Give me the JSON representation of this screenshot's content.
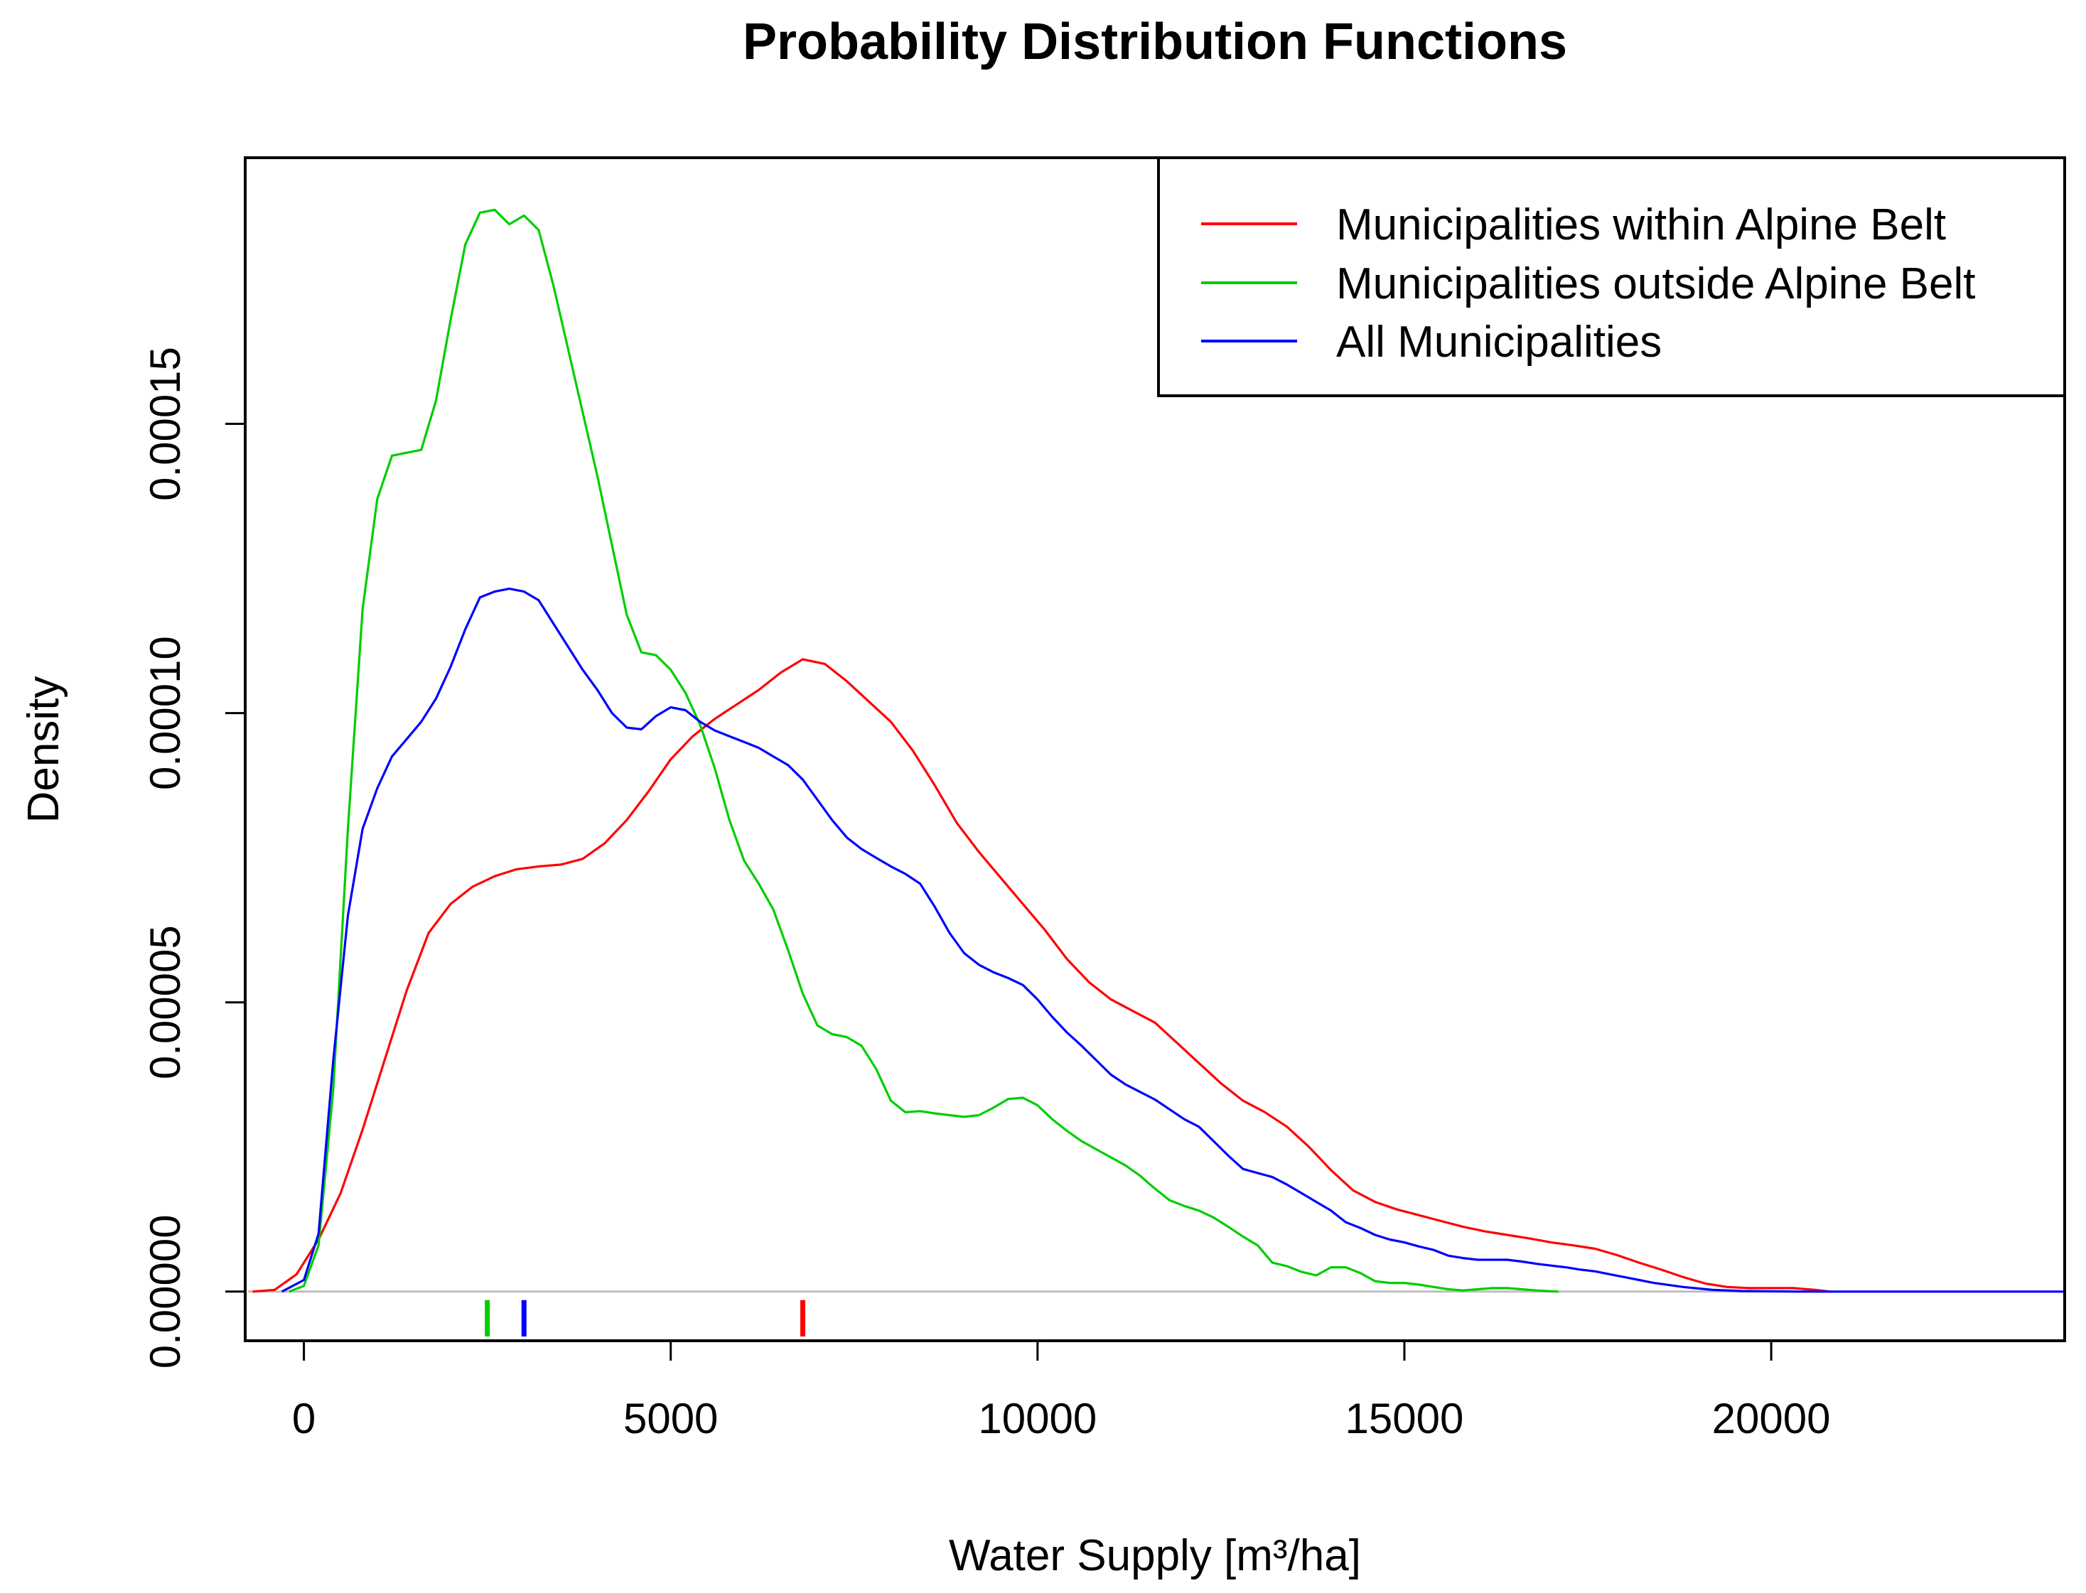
{
  "chart_data": {
    "type": "line",
    "title": "Probability Distribution Functions",
    "xlabel": "Water Supply [m³/ha]",
    "ylabel": "Density",
    "xlim": [
      -800,
      24000
    ],
    "ylim": [
      -8.5e-06,
      0.000196
    ],
    "x_ticks": [
      0,
      5000,
      10000,
      15000,
      20000
    ],
    "x_tick_labels": [
      "0",
      "5000",
      "10000",
      "15000",
      "20000"
    ],
    "y_ticks": [
      0,
      5e-05,
      0.0001,
      0.00015
    ],
    "y_tick_labels": [
      "0.00000",
      "0.00005",
      "0.00010",
      "0.00015"
    ],
    "legend_position": "top-right",
    "baseline": {
      "y": 0,
      "color": "#bebebe"
    },
    "series": [
      {
        "name": "Municipalities within Alpine Belt",
        "color": "#ff0000",
        "median": 6800,
        "points": [
          [
            -700,
            0
          ],
          [
            -400,
            3e-07
          ],
          [
            -100,
            3e-06
          ],
          [
            200,
            9e-06
          ],
          [
            500,
            1.7e-05
          ],
          [
            800,
            2.8e-05
          ],
          [
            1100,
            4e-05
          ],
          [
            1400,
            5.2e-05
          ],
          [
            1700,
            6.2e-05
          ],
          [
            2000,
            6.7e-05
          ],
          [
            2300,
            7e-05
          ],
          [
            2600,
            7.18e-05
          ],
          [
            2900,
            7.3e-05
          ],
          [
            3200,
            7.35e-05
          ],
          [
            3500,
            7.38e-05
          ],
          [
            3800,
            7.48e-05
          ],
          [
            4100,
            7.75e-05
          ],
          [
            4400,
            8.15e-05
          ],
          [
            4700,
            8.65e-05
          ],
          [
            5000,
            9.2e-05
          ],
          [
            5300,
            9.6e-05
          ],
          [
            5600,
            9.9e-05
          ],
          [
            5900,
            0.0001015
          ],
          [
            6200,
            0.000104
          ],
          [
            6500,
            0.000107
          ],
          [
            6800,
            0.0001093
          ],
          [
            7100,
            0.0001085
          ],
          [
            7400,
            0.0001055
          ],
          [
            7700,
            0.000102
          ],
          [
            8000,
            9.85e-05
          ],
          [
            8300,
            9.35e-05
          ],
          [
            8600,
            8.75e-05
          ],
          [
            8900,
            8.1e-05
          ],
          [
            9200,
            7.6e-05
          ],
          [
            9500,
            7.15e-05
          ],
          [
            9800,
            6.7e-05
          ],
          [
            10100,
            6.25e-05
          ],
          [
            10400,
            5.75e-05
          ],
          [
            10700,
            5.35e-05
          ],
          [
            11000,
            5.05e-05
          ],
          [
            11300,
            4.85e-05
          ],
          [
            11600,
            4.65e-05
          ],
          [
            11900,
            4.3e-05
          ],
          [
            12200,
            3.95e-05
          ],
          [
            12500,
            3.6e-05
          ],
          [
            12800,
            3.3e-05
          ],
          [
            13100,
            3.1e-05
          ],
          [
            13400,
            2.85e-05
          ],
          [
            13700,
            2.5e-05
          ],
          [
            14000,
            2.1e-05
          ],
          [
            14300,
            1.75e-05
          ],
          [
            14600,
            1.55e-05
          ],
          [
            14900,
            1.42e-05
          ],
          [
            15200,
            1.32e-05
          ],
          [
            15500,
            1.22e-05
          ],
          [
            15800,
            1.12e-05
          ],
          [
            16100,
            1.04e-05
          ],
          [
            16400,
            9.8e-06
          ],
          [
            16700,
            9.2e-06
          ],
          [
            17000,
            8.5e-06
          ],
          [
            17300,
            8e-06
          ],
          [
            17600,
            7.4e-06
          ],
          [
            17900,
            6.3e-06
          ],
          [
            18200,
            5e-06
          ],
          [
            18500,
            3.8e-06
          ],
          [
            18800,
            2.5e-06
          ],
          [
            19100,
            1.4e-06
          ],
          [
            19400,
            8e-07
          ],
          [
            19700,
            6e-07
          ],
          [
            20000,
            6e-07
          ],
          [
            20300,
            6e-07
          ],
          [
            20600,
            3e-07
          ],
          [
            20800,
            0
          ]
        ]
      },
      {
        "name": "Municipalities outside Alpine Belt",
        "color": "#00cd00",
        "median": 2500,
        "points": [
          [
            -200,
            0
          ],
          [
            0,
            1e-06
          ],
          [
            200,
            8e-06
          ],
          [
            400,
            3.5e-05
          ],
          [
            600,
            8e-05
          ],
          [
            800,
            0.000118
          ],
          [
            1000,
            0.000137
          ],
          [
            1200,
            0.0001445
          ],
          [
            1400,
            0.000145
          ],
          [
            1600,
            0.0001455
          ],
          [
            1800,
            0.000154
          ],
          [
            2000,
            0.000168
          ],
          [
            2200,
            0.000181
          ],
          [
            2400,
            0.0001865
          ],
          [
            2600,
            0.000187
          ],
          [
            2800,
            0.0001845
          ],
          [
            3000,
            0.000186
          ],
          [
            3200,
            0.0001835
          ],
          [
            3400,
            0.000174
          ],
          [
            3600,
            0.000163
          ],
          [
            3800,
            0.000152
          ],
          [
            4000,
            0.000141
          ],
          [
            4200,
            0.000129
          ],
          [
            4400,
            0.000117
          ],
          [
            4600,
            0.0001105
          ],
          [
            4800,
            0.00011
          ],
          [
            5000,
            0.0001075
          ],
          [
            5200,
            0.0001035
          ],
          [
            5400,
            9.8e-05
          ],
          [
            5600,
            9.05e-05
          ],
          [
            5800,
            8.15e-05
          ],
          [
            6000,
            7.45e-05
          ],
          [
            6200,
            7.05e-05
          ],
          [
            6400,
            6.6e-05
          ],
          [
            6600,
            5.9e-05
          ],
          [
            6800,
            5.15e-05
          ],
          [
            7000,
            4.6e-05
          ],
          [
            7200,
            4.45e-05
          ],
          [
            7400,
            4.4e-05
          ],
          [
            7600,
            4.25e-05
          ],
          [
            7800,
            3.85e-05
          ],
          [
            8000,
            3.3e-05
          ],
          [
            8200,
            3.1e-05
          ],
          [
            8400,
            3.12e-05
          ],
          [
            8600,
            3.08e-05
          ],
          [
            8800,
            3.05e-05
          ],
          [
            9000,
            3.02e-05
          ],
          [
            9200,
            3.05e-05
          ],
          [
            9400,
            3.18e-05
          ],
          [
            9600,
            3.33e-05
          ],
          [
            9800,
            3.35e-05
          ],
          [
            10000,
            3.22e-05
          ],
          [
            10200,
            2.98e-05
          ],
          [
            10400,
            2.78e-05
          ],
          [
            10600,
            2.6e-05
          ],
          [
            10800,
            2.46e-05
          ],
          [
            11000,
            2.32e-05
          ],
          [
            11200,
            2.18e-05
          ],
          [
            11400,
            2e-05
          ],
          [
            11600,
            1.78e-05
          ],
          [
            11800,
            1.58e-05
          ],
          [
            12000,
            1.48e-05
          ],
          [
            12200,
            1.4e-05
          ],
          [
            12400,
            1.28e-05
          ],
          [
            12600,
            1.12e-05
          ],
          [
            12800,
            9.5e-06
          ],
          [
            13000,
            8e-06
          ],
          [
            13200,
            5e-06
          ],
          [
            13400,
            4.4e-06
          ],
          [
            13600,
            3.4e-06
          ],
          [
            13800,
            2.8e-06
          ],
          [
            14000,
            4.2e-06
          ],
          [
            14200,
            4.2e-06
          ],
          [
            14400,
            3.2e-06
          ],
          [
            14600,
            1.8e-06
          ],
          [
            14800,
            1.5e-06
          ],
          [
            15000,
            1.5e-06
          ],
          [
            15200,
            1.2e-06
          ],
          [
            15400,
            8e-07
          ],
          [
            15600,
            4e-07
          ],
          [
            15800,
            2e-07
          ],
          [
            16000,
            4e-07
          ],
          [
            16200,
            6e-07
          ],
          [
            16400,
            6e-07
          ],
          [
            16600,
            4e-07
          ],
          [
            16800,
            2e-07
          ],
          [
            17100,
            0
          ]
        ]
      },
      {
        "name": "All Municipalities",
        "color": "#0000ff",
        "median": 3000,
        "points": [
          [
            -300,
            0
          ],
          [
            0,
            2e-06
          ],
          [
            200,
            1e-05
          ],
          [
            400,
            4e-05
          ],
          [
            600,
            6.5e-05
          ],
          [
            800,
            8e-05
          ],
          [
            1000,
            8.7e-05
          ],
          [
            1200,
            9.25e-05
          ],
          [
            1400,
            9.55e-05
          ],
          [
            1600,
            9.85e-05
          ],
          [
            1800,
            0.0001025
          ],
          [
            2000,
            0.000108
          ],
          [
            2200,
            0.0001145
          ],
          [
            2400,
            0.00012
          ],
          [
            2600,
            0.000121
          ],
          [
            2800,
            0.0001215
          ],
          [
            3000,
            0.000121
          ],
          [
            3200,
            0.0001195
          ],
          [
            3400,
            0.0001155
          ],
          [
            3600,
            0.0001115
          ],
          [
            3800,
            0.0001075
          ],
          [
            4000,
            0.000104
          ],
          [
            4200,
            0.0001
          ],
          [
            4400,
            9.75e-05
          ],
          [
            4600,
            9.72e-05
          ],
          [
            4800,
            9.95e-05
          ],
          [
            5000,
            0.000101
          ],
          [
            5200,
            0.0001005
          ],
          [
            5400,
            9.85e-05
          ],
          [
            5600,
            9.7e-05
          ],
          [
            5800,
            9.6e-05
          ],
          [
            6000,
            9.5e-05
          ],
          [
            6200,
            9.4e-05
          ],
          [
            6400,
            9.25e-05
          ],
          [
            6600,
            9.1e-05
          ],
          [
            6800,
            8.85e-05
          ],
          [
            7000,
            8.5e-05
          ],
          [
            7200,
            8.15e-05
          ],
          [
            7400,
            7.85e-05
          ],
          [
            7600,
            7.65e-05
          ],
          [
            7800,
            7.5e-05
          ],
          [
            8000,
            7.35e-05
          ],
          [
            8200,
            7.22e-05
          ],
          [
            8400,
            7.05e-05
          ],
          [
            8600,
            6.65e-05
          ],
          [
            8800,
            6.2e-05
          ],
          [
            9000,
            5.85e-05
          ],
          [
            9200,
            5.65e-05
          ],
          [
            9400,
            5.52e-05
          ],
          [
            9600,
            5.42e-05
          ],
          [
            9800,
            5.3e-05
          ],
          [
            10000,
            5.05e-05
          ],
          [
            10200,
            4.75e-05
          ],
          [
            10400,
            4.48e-05
          ],
          [
            10600,
            4.25e-05
          ],
          [
            10800,
            4e-05
          ],
          [
            11000,
            3.75e-05
          ],
          [
            11200,
            3.58e-05
          ],
          [
            11400,
            3.45e-05
          ],
          [
            11600,
            3.32e-05
          ],
          [
            11800,
            3.15e-05
          ],
          [
            12000,
            2.98e-05
          ],
          [
            12200,
            2.85e-05
          ],
          [
            12400,
            2.6e-05
          ],
          [
            12600,
            2.35e-05
          ],
          [
            12800,
            2.12e-05
          ],
          [
            13000,
            2.05e-05
          ],
          [
            13200,
            1.98e-05
          ],
          [
            13400,
            1.85e-05
          ],
          [
            13600,
            1.7e-05
          ],
          [
            13800,
            1.55e-05
          ],
          [
            14000,
            1.4e-05
          ],
          [
            14200,
            1.2e-05
          ],
          [
            14400,
            1.1e-05
          ],
          [
            14600,
            9.8e-06
          ],
          [
            14800,
            9e-06
          ],
          [
            15000,
            8.5e-06
          ],
          [
            15200,
            7.8e-06
          ],
          [
            15400,
            7.2e-06
          ],
          [
            15600,
            6.2e-06
          ],
          [
            15800,
            5.8e-06
          ],
          [
            16000,
            5.5e-06
          ],
          [
            16200,
            5.5e-06
          ],
          [
            16400,
            5.5e-06
          ],
          [
            16600,
            5.2e-06
          ],
          [
            16800,
            4.8e-06
          ],
          [
            17000,
            4.5e-06
          ],
          [
            17200,
            4.2e-06
          ],
          [
            17400,
            3.8e-06
          ],
          [
            17600,
            3.5e-06
          ],
          [
            17800,
            3e-06
          ],
          [
            18000,
            2.5e-06
          ],
          [
            18200,
            2e-06
          ],
          [
            18400,
            1.5e-06
          ],
          [
            18800,
            8e-07
          ],
          [
            19200,
            3e-07
          ],
          [
            19600,
            1e-07
          ],
          [
            20400,
            0
          ],
          [
            24000,
            0
          ]
        ]
      }
    ]
  }
}
